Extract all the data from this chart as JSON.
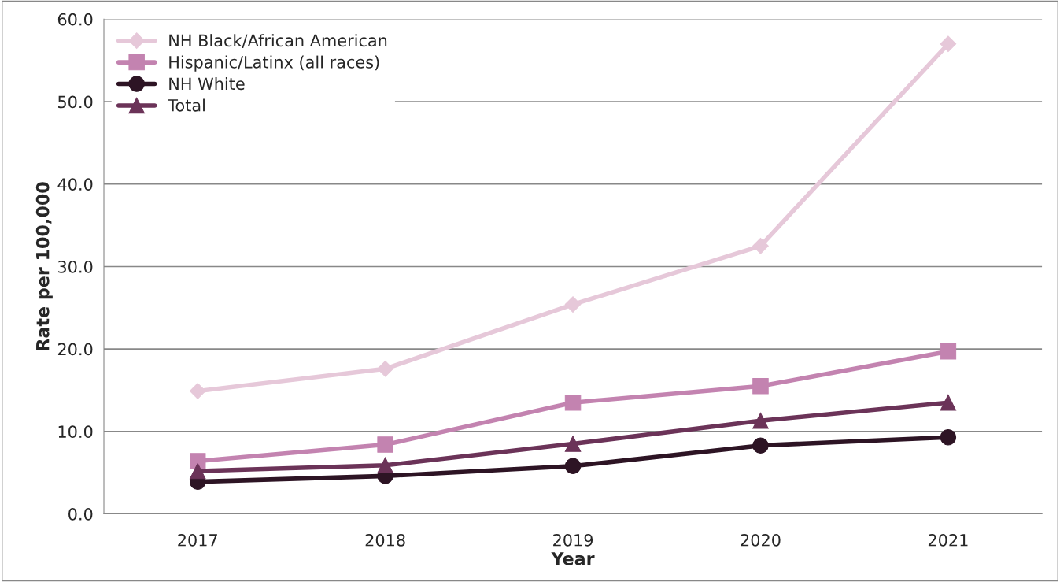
{
  "chart_data": {
    "type": "line",
    "xlabel": "Year",
    "ylabel": "Rate per 100,000",
    "categories": [
      "2017",
      "2018",
      "2019",
      "2020",
      "2021"
    ],
    "series": [
      {
        "name": "NH Black/African American",
        "color": "#e6c8d9",
        "marker": "diamond",
        "values": [
          14.9,
          17.6,
          25.4,
          32.5,
          57.0
        ]
      },
      {
        "name": "Hispanic/Latinx (all races)",
        "color": "#c383b0",
        "marker": "square",
        "values": [
          6.4,
          8.4,
          13.5,
          15.5,
          19.7
        ]
      },
      {
        "name": "NH White",
        "color": "#2d1424",
        "marker": "circle",
        "values": [
          3.9,
          4.6,
          5.8,
          8.3,
          9.3
        ]
      },
      {
        "name": "Total",
        "color": "#6b3358",
        "marker": "triangle",
        "values": [
          5.2,
          5.9,
          8.5,
          11.3,
          13.5
        ]
      }
    ],
    "ylim": [
      0,
      60
    ],
    "yticks": [
      {
        "value": 0,
        "label": "0.0"
      },
      {
        "value": 10,
        "label": "10.0"
      },
      {
        "value": 20,
        "label": "20.0"
      },
      {
        "value": 30,
        "label": "30.0"
      },
      {
        "value": 40,
        "label": "40.0"
      },
      {
        "value": 50,
        "label": "50.0"
      },
      {
        "value": 60,
        "label": "60.0"
      }
    ],
    "grid": "y",
    "legend": "top left",
    "line_style": "solid"
  }
}
